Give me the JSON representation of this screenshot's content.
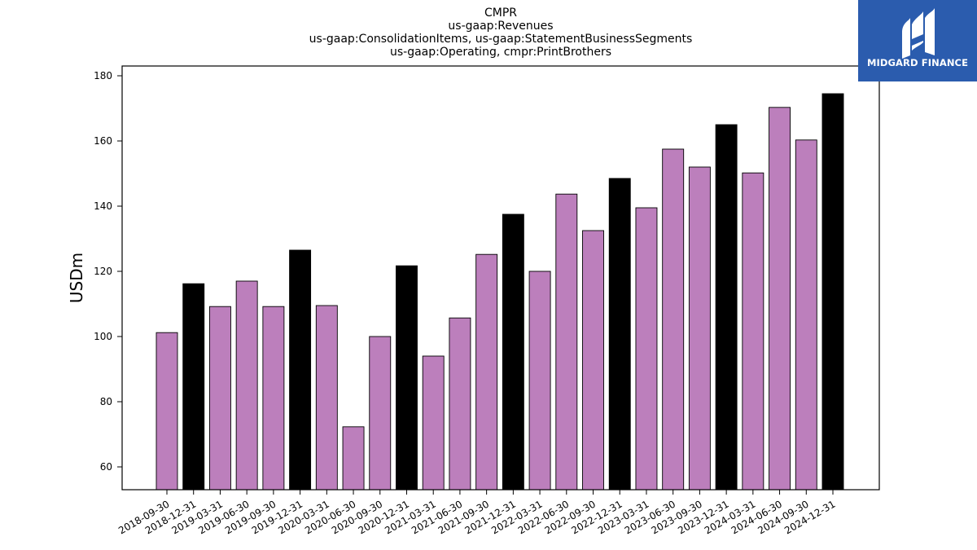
{
  "chart_data": {
    "type": "bar",
    "title_lines": [
      "CMPR",
      "us-gaap:Revenues",
      "us-gaap:ConsolidationItems, us-gaap:StatementBusinessSegments",
      "us-gaap:Operating, cmpr:PrintBrothers"
    ],
    "xlabel": "",
    "ylabel": "USDm",
    "ylim": [
      53,
      183
    ],
    "yticks": [
      60,
      80,
      100,
      120,
      140,
      160,
      180
    ],
    "grid": false,
    "categories": [
      "2018-09-30",
      "2018-12-31",
      "2019-03-31",
      "2019-06-30",
      "2019-09-30",
      "2019-12-31",
      "2020-03-31",
      "2020-06-30",
      "2020-09-30",
      "2020-12-31",
      "2021-03-31",
      "2021-06-30",
      "2021-09-30",
      "2021-12-31",
      "2022-03-31",
      "2022-06-30",
      "2022-09-30",
      "2022-12-31",
      "2023-03-31",
      "2023-06-30",
      "2023-09-30",
      "2023-12-31",
      "2024-03-31",
      "2024-06-30",
      "2024-09-30",
      "2024-12-31"
    ],
    "values": [
      101.2,
      116.2,
      109.2,
      117.0,
      109.2,
      126.5,
      109.5,
      72.3,
      100.0,
      121.7,
      94.0,
      105.7,
      125.2,
      137.5,
      120.0,
      143.7,
      132.5,
      148.5,
      139.5,
      157.5,
      152.0,
      165.0,
      150.2,
      170.3,
      160.3,
      174.5
    ],
    "bar_colors": [
      "#bc7fbc",
      "#000000",
      "#bc7fbc",
      "#bc7fbc",
      "#bc7fbc",
      "#000000",
      "#bc7fbc",
      "#bc7fbc",
      "#bc7fbc",
      "#000000",
      "#bc7fbc",
      "#bc7fbc",
      "#bc7fbc",
      "#000000",
      "#bc7fbc",
      "#bc7fbc",
      "#bc7fbc",
      "#000000",
      "#bc7fbc",
      "#bc7fbc",
      "#bc7fbc",
      "#000000",
      "#bc7fbc",
      "#bc7fbc",
      "#bc7fbc",
      "#000000"
    ],
    "colors": {
      "quarter": "#bc7fbc",
      "year_end": "#000000",
      "edge": "#000000"
    }
  },
  "logo": {
    "text": "MIDGARD FINANCE",
    "background": "#2b5cae",
    "icon": "midgard-mark-icon"
  }
}
